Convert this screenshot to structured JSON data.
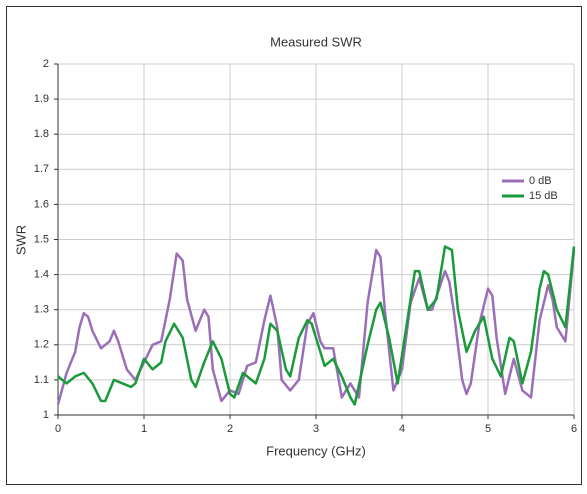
{
  "chart_data": {
    "type": "line",
    "title": "Measured SWR",
    "x_label": "Frequency (GHz)",
    "y_label": "SWR",
    "xlim": [
      0,
      6
    ],
    "ylim": [
      1,
      2
    ],
    "xticks": [
      0,
      1,
      2,
      3,
      4,
      5,
      6
    ],
    "yticks": [
      1,
      1.1,
      1.2,
      1.3,
      1.4,
      1.5,
      1.6,
      1.7,
      1.8,
      1.9,
      2
    ],
    "grid": true,
    "legend": "right",
    "series": [
      {
        "name": "0 dB",
        "color": "#9b6fb8",
        "x": [
          0,
          0.1,
          0.2,
          0.25,
          0.3,
          0.35,
          0.4,
          0.5,
          0.6,
          0.65,
          0.7,
          0.8,
          0.9,
          1.0,
          1.1,
          1.2,
          1.3,
          1.38,
          1.45,
          1.5,
          1.6,
          1.7,
          1.75,
          1.8,
          1.9,
          2.0,
          2.1,
          2.2,
          2.3,
          2.4,
          2.47,
          2.55,
          2.6,
          2.7,
          2.8,
          2.9,
          2.97,
          3.05,
          3.1,
          3.2,
          3.3,
          3.4,
          3.5,
          3.6,
          3.7,
          3.75,
          3.8,
          3.9,
          4.0,
          4.1,
          4.2,
          4.3,
          4.35,
          4.5,
          4.55,
          4.6,
          4.7,
          4.75,
          4.8,
          4.9,
          5.0,
          5.05,
          5.1,
          5.2,
          5.3,
          5.4,
          5.5,
          5.6,
          5.7,
          5.75,
          5.8,
          5.9,
          6.0
        ],
        "values": [
          1.03,
          1.12,
          1.18,
          1.25,
          1.29,
          1.28,
          1.24,
          1.19,
          1.21,
          1.24,
          1.21,
          1.13,
          1.1,
          1.15,
          1.2,
          1.21,
          1.33,
          1.46,
          1.44,
          1.33,
          1.24,
          1.3,
          1.28,
          1.13,
          1.04,
          1.07,
          1.06,
          1.14,
          1.15,
          1.27,
          1.34,
          1.25,
          1.1,
          1.07,
          1.1,
          1.26,
          1.29,
          1.21,
          1.19,
          1.19,
          1.05,
          1.09,
          1.05,
          1.32,
          1.47,
          1.45,
          1.3,
          1.07,
          1.13,
          1.32,
          1.39,
          1.3,
          1.3,
          1.41,
          1.38,
          1.3,
          1.1,
          1.06,
          1.09,
          1.26,
          1.36,
          1.34,
          1.22,
          1.06,
          1.16,
          1.07,
          1.05,
          1.27,
          1.37,
          1.33,
          1.25,
          1.21,
          1.47
        ]
      },
      {
        "name": "15 dB",
        "color": "#1a9a3a",
        "x": [
          0,
          0.1,
          0.2,
          0.3,
          0.4,
          0.5,
          0.55,
          0.65,
          0.75,
          0.85,
          0.9,
          1.0,
          1.1,
          1.2,
          1.25,
          1.35,
          1.45,
          1.55,
          1.6,
          1.7,
          1.8,
          1.9,
          2.0,
          2.05,
          2.15,
          2.3,
          2.4,
          2.47,
          2.55,
          2.65,
          2.7,
          2.8,
          2.9,
          2.95,
          3.05,
          3.1,
          3.2,
          3.3,
          3.4,
          3.45,
          3.6,
          3.7,
          3.75,
          3.85,
          3.95,
          4.05,
          4.15,
          4.2,
          4.3,
          4.4,
          4.5,
          4.58,
          4.65,
          4.75,
          4.85,
          4.95,
          5.05,
          5.15,
          5.25,
          5.3,
          5.4,
          5.5,
          5.6,
          5.65,
          5.7,
          5.8,
          5.9,
          6.0
        ],
        "values": [
          1.11,
          1.09,
          1.11,
          1.12,
          1.09,
          1.04,
          1.04,
          1.1,
          1.09,
          1.08,
          1.09,
          1.16,
          1.13,
          1.15,
          1.21,
          1.26,
          1.22,
          1.1,
          1.08,
          1.15,
          1.21,
          1.16,
          1.06,
          1.05,
          1.12,
          1.09,
          1.16,
          1.26,
          1.24,
          1.13,
          1.11,
          1.22,
          1.27,
          1.26,
          1.18,
          1.14,
          1.16,
          1.11,
          1.05,
          1.03,
          1.2,
          1.3,
          1.32,
          1.22,
          1.09,
          1.25,
          1.41,
          1.41,
          1.3,
          1.33,
          1.48,
          1.47,
          1.3,
          1.18,
          1.24,
          1.28,
          1.16,
          1.11,
          1.22,
          1.21,
          1.09,
          1.18,
          1.36,
          1.41,
          1.4,
          1.3,
          1.25,
          1.48
        ]
      }
    ]
  }
}
